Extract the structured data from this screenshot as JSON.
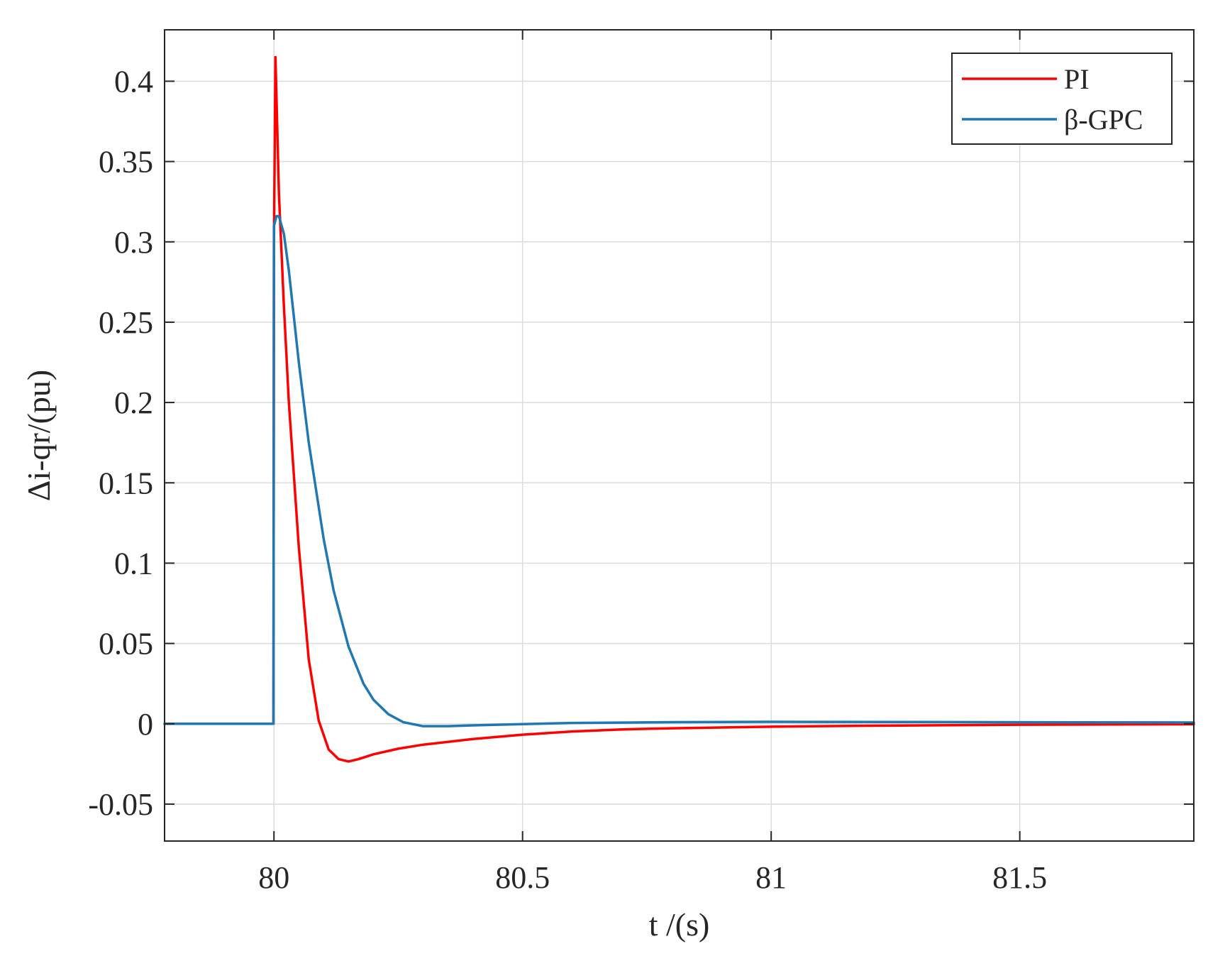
{
  "chart_data": {
    "type": "line",
    "title": "",
    "xlabel": "t /(s)",
    "ylabel": "Δi-qr/(pu)",
    "xlim": [
      79.78,
      81.85
    ],
    "ylim": [
      -0.073,
      0.432
    ],
    "xticks": [
      80,
      80.5,
      81,
      81.5
    ],
    "xtick_labels": [
      "80",
      "80.5",
      "81",
      "81.5"
    ],
    "yticks": [
      -0.05,
      0,
      0.05,
      0.1,
      0.15,
      0.2,
      0.25,
      0.3,
      0.35,
      0.4
    ],
    "ytick_labels": [
      "-0.05",
      "0",
      "0.05",
      "0.1",
      "0.15",
      "0.2",
      "0.25",
      "0.3",
      "0.35",
      "0.4"
    ],
    "grid": true,
    "legend_position": "top-right",
    "series": [
      {
        "name": "PI",
        "color": "#ff0000",
        "x": [
          79.78,
          79.999,
          80.0,
          80.003,
          80.01,
          80.02,
          80.03,
          80.05,
          80.07,
          80.09,
          80.11,
          80.13,
          80.15,
          80.17,
          80.2,
          80.25,
          80.3,
          80.4,
          80.5,
          80.6,
          80.7,
          80.8,
          81.0,
          81.2,
          81.5,
          81.85
        ],
        "y": [
          0,
          0,
          0.3,
          0.415,
          0.33,
          0.26,
          0.2,
          0.11,
          0.04,
          0.002,
          -0.016,
          -0.022,
          -0.0235,
          -0.022,
          -0.019,
          -0.0155,
          -0.013,
          -0.0095,
          -0.0068,
          -0.0048,
          -0.0035,
          -0.0028,
          -0.0018,
          -0.0012,
          -0.0006,
          -0.0003
        ]
      },
      {
        "name": "β-GPC",
        "color": "#1f77b4",
        "x": [
          79.78,
          79.999,
          80.0,
          80.005,
          80.01,
          80.02,
          80.03,
          80.05,
          80.07,
          80.1,
          80.12,
          80.15,
          80.18,
          80.2,
          80.23,
          80.26,
          80.3,
          80.35,
          80.4,
          80.5,
          80.6,
          80.8,
          81.0,
          81.3,
          81.6,
          81.85
        ],
        "y": [
          0,
          0,
          0.31,
          0.316,
          0.316,
          0.305,
          0.282,
          0.225,
          0.175,
          0.115,
          0.083,
          0.048,
          0.025,
          0.015,
          0.006,
          0.001,
          -0.0015,
          -0.0015,
          -0.001,
          -0.0002,
          0.0005,
          0.001,
          0.0012,
          0.0011,
          0.0009,
          0.0008
        ]
      }
    ]
  }
}
